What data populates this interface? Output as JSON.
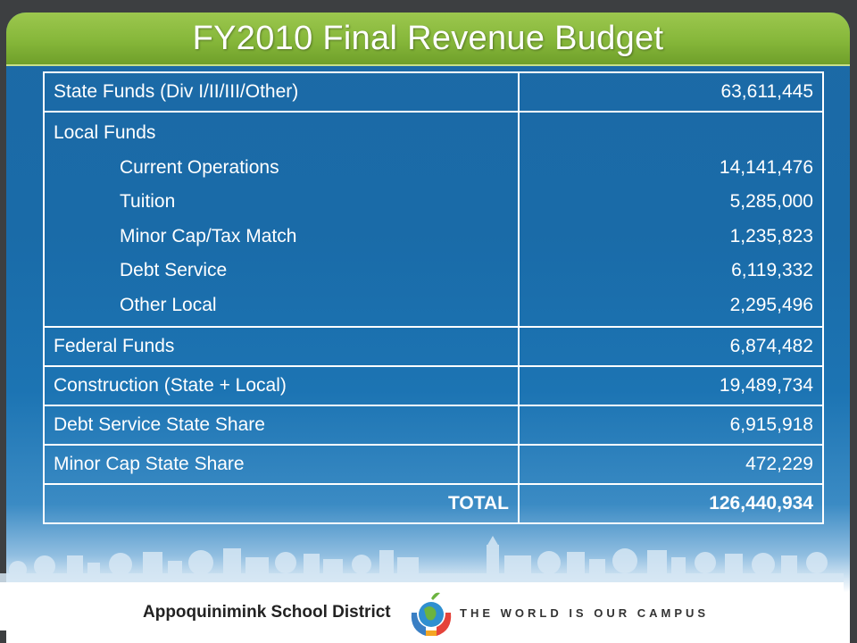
{
  "slide": {
    "title": "FY2010 Final Revenue Budget"
  },
  "table": {
    "rows": [
      {
        "label": "State Funds (Div I/II/III/Other)",
        "amount": "63,611,445"
      },
      {
        "label": "Local Funds",
        "subitems": [
          {
            "label": "Current Operations",
            "amount": "14,141,476"
          },
          {
            "label": "Tuition",
            "amount": "5,285,000"
          },
          {
            "label": "Minor Cap/Tax Match",
            "amount": "1,235,823"
          },
          {
            "label": "Debt Service",
            "amount": "6,119,332"
          },
          {
            "label": "Other Local",
            "amount": "2,295,496"
          }
        ]
      },
      {
        "label": "Federal Funds",
        "amount": "6,874,482"
      },
      {
        "label": "Construction (State + Local)",
        "amount": "19,489,734"
      },
      {
        "label": "Debt Service State Share",
        "amount": "6,915,918"
      },
      {
        "label": "Minor Cap State Share",
        "amount": "472,229"
      }
    ],
    "total": {
      "label": "TOTAL",
      "amount": "126,440,934"
    }
  },
  "footer": {
    "district": "Appoquinimink School District",
    "tagline": "THE WORLD IS OUR CAMPUS",
    "logo_icon": "globe-apple-hands-logo-icon"
  },
  "colors": {
    "title_bar": "#86b73a",
    "background": "#1a6ba8",
    "frame": "#3d3f41"
  }
}
